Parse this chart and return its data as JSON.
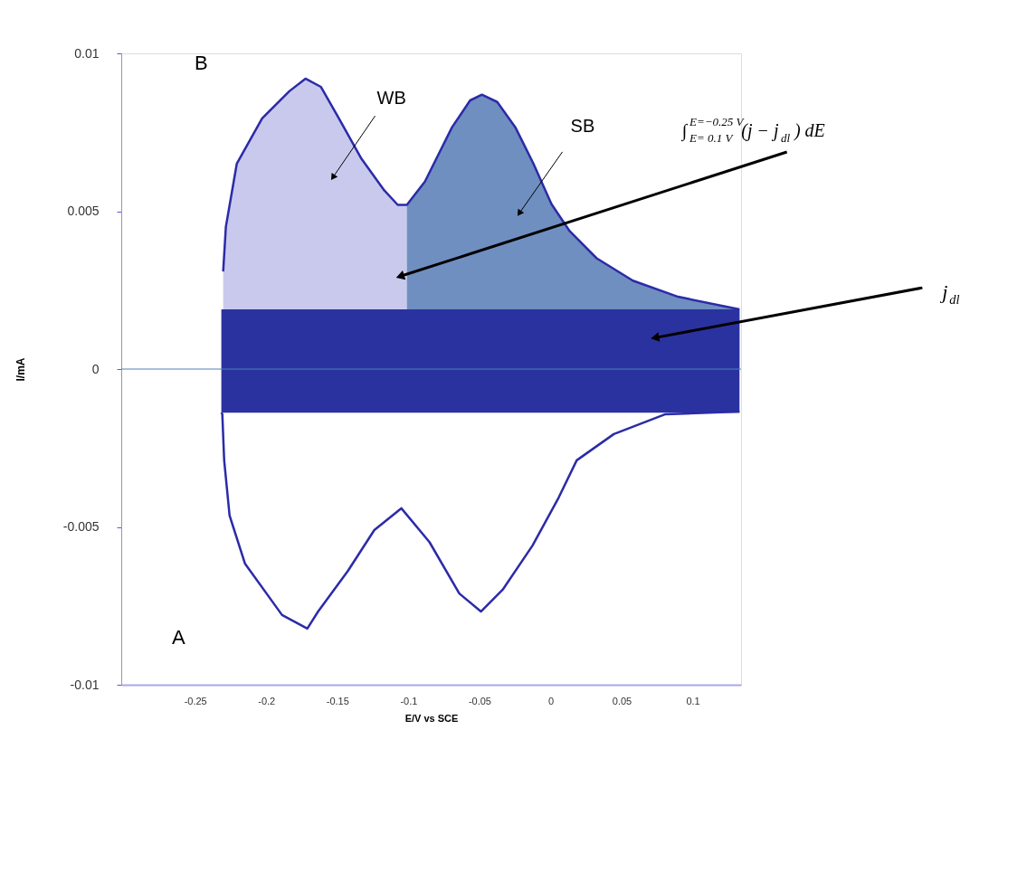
{
  "chart_data": {
    "type": "area",
    "xlabel": "E/V vs SCE",
    "ylabel": "I/mA",
    "xlim": [
      -0.302,
      0.134
    ],
    "ylim": [
      -0.01,
      0.01
    ],
    "xticks": [
      -0.25,
      -0.2,
      -0.15,
      -0.1,
      -0.05,
      0,
      0.05,
      0.1
    ],
    "yticks": [
      -0.01,
      -0.005,
      0,
      0.005,
      0.01
    ],
    "grid": false,
    "series": [
      {
        "color": "#c9c9ee",
        "x": [
          -0.2303,
          -0.2284,
          -0.2207,
          -0.2029,
          -0.1838,
          -0.1724,
          -0.1616,
          -0.1489,
          -0.133,
          -0.117,
          -0.1075,
          -0.1011
        ],
        "values": [
          0.00309,
          0.00451,
          0.00651,
          0.00794,
          0.0088,
          0.0092,
          0.00894,
          0.00794,
          0.00666,
          0.00566,
          0.0052,
          0.0052
        ]
      },
      {
        "color": "#6f8fc0",
        "x": [
          -0.1011,
          -0.0884,
          -0.0693,
          -0.0566,
          -0.0483,
          -0.0375,
          -0.0248,
          -0.0121,
          0.0006,
          0.0134,
          0.0324,
          0.0579,
          0.0897,
          0.1329
        ],
        "values": [
          0.0052,
          0.00594,
          0.00766,
          0.00851,
          0.00869,
          0.00846,
          0.00766,
          0.00651,
          0.00523,
          0.00437,
          0.00351,
          0.0028,
          0.00229,
          0.00189
        ]
      },
      {
        "color": "#2a32a0",
        "x": [
          -0.2316,
          0.1329
        ],
        "values": [
          0.00189,
          0.00189
        ]
      },
      {
        "color": "#2a32a0",
        "x": [
          -0.2316,
          0.1329
        ],
        "values": [
          -0.00138,
          -0.00138
        ]
      },
      {
        "type": "line",
        "color": "#2b2ba8",
        "x": [
          -0.2303,
          -0.2284,
          -0.2207,
          -0.2029,
          -0.1838,
          -0.1724,
          -0.1616,
          -0.1489,
          -0.133,
          -0.117,
          -0.1075,
          -0.1011,
          -0.0884,
          -0.0693,
          -0.0566,
          -0.0483,
          -0.0375,
          -0.0248,
          -0.0121,
          0.0006,
          0.0134,
          0.0324,
          0.0579,
          0.0897,
          0.1329
        ],
        "values": [
          0.00309,
          0.00451,
          0.00651,
          0.00794,
          0.0088,
          0.0092,
          0.00894,
          0.00794,
          0.00666,
          0.00566,
          0.0052,
          0.0052,
          0.00594,
          0.00766,
          0.00851,
          0.00869,
          0.00846,
          0.00766,
          0.00651,
          0.00523,
          0.00437,
          0.00351,
          0.0028,
          0.00229,
          0.00189
        ]
      },
      {
        "type": "line",
        "color": "#2b2ba8",
        "x": [
          -0.2316,
          -0.2309,
          -0.2296,
          -0.2258,
          -0.215,
          -0.1889,
          -0.1711,
          -0.1635,
          -0.1425,
          -0.124,
          -0.105,
          -0.0852,
          -0.0642,
          -0.049,
          -0.0337,
          -0.0127,
          0.0057,
          0.0184,
          0.0445,
          0.0808,
          0.1329
        ],
        "values": [
          -0.00138,
          -0.00143,
          -0.00289,
          -0.00464,
          -0.00616,
          -0.00779,
          -0.00822,
          -0.00768,
          -0.00639,
          -0.0051,
          -0.00441,
          -0.00548,
          -0.00711,
          -0.00768,
          -0.00699,
          -0.00559,
          -0.00407,
          -0.00289,
          -0.00206,
          -0.00143,
          -0.00135
        ]
      }
    ],
    "ref_lines": [
      {
        "axis": "y",
        "value": 0,
        "color": "#4f81bd"
      }
    ],
    "annotations": [
      "B",
      "A",
      {
        "text": "WB",
        "x": -0.1527,
        "y": 0.0061
      },
      {
        "text": "SB",
        "x": -0.0216,
        "y": 0.00496
      },
      {
        "text": "∫$^{E=−0.25 V}$$_{E= 0.1 V}$(j − j$_{dl}$) dE",
        "x": -0.1049,
        "y": 0.00295
      },
      {
        "text": "j$_{dl}$",
        "x": 0.0744,
        "y": 0.001
      }
    ]
  }
}
